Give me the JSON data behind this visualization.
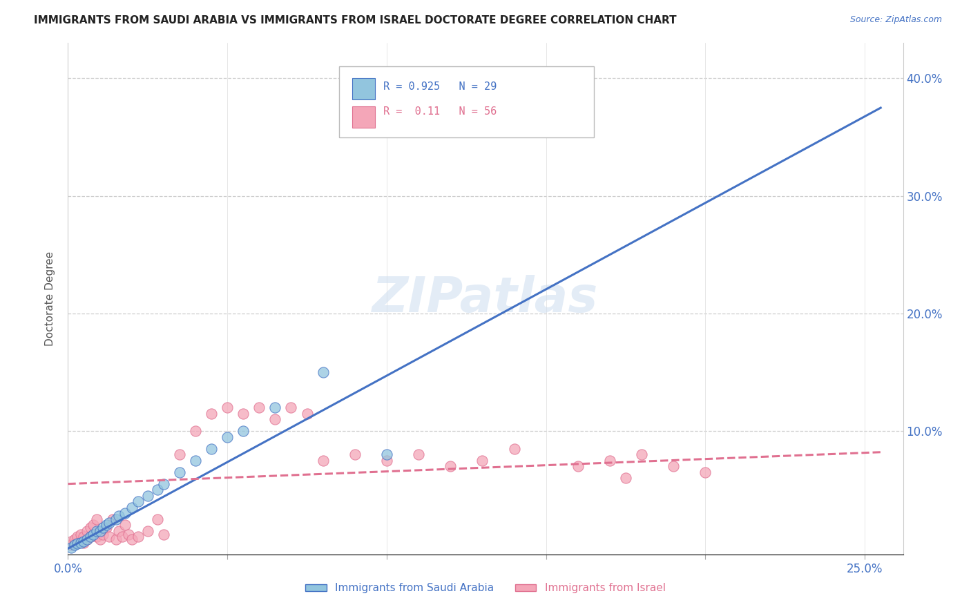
{
  "title": "IMMIGRANTS FROM SAUDI ARABIA VS IMMIGRANTS FROM ISRAEL DOCTORATE DEGREE CORRELATION CHART",
  "source": "Source: ZipAtlas.com",
  "ylabel": "Doctorate Degree",
  "legend1_label": "Immigrants from Saudi Arabia",
  "legend2_label": "Immigrants from Israel",
  "r1": 0.925,
  "n1": 29,
  "r2": 0.11,
  "n2": 56,
  "color_blue": "#92c5de",
  "color_pink": "#f4a6b8",
  "color_blue_text": "#4472c4",
  "color_pink_text": "#e07090",
  "watermark": "ZIPatlas",
  "blue_line_x": [
    0.0,
    0.255
  ],
  "blue_line_y": [
    0.0,
    0.375
  ],
  "pink_line_x": [
    0.0,
    0.255
  ],
  "pink_line_y": [
    0.055,
    0.082
  ],
  "xlim": [
    0.0,
    0.262
  ],
  "ylim": [
    -0.005,
    0.43
  ],
  "saudi_scatter_x": [
    0.001,
    0.002,
    0.003,
    0.004,
    0.005,
    0.006,
    0.007,
    0.008,
    0.009,
    0.01,
    0.011,
    0.012,
    0.013,
    0.015,
    0.016,
    0.018,
    0.02,
    0.022,
    0.025,
    0.028,
    0.03,
    0.035,
    0.04,
    0.045,
    0.05,
    0.055,
    0.065,
    0.08,
    0.1
  ],
  "saudi_scatter_y": [
    0.001,
    0.003,
    0.004,
    0.005,
    0.006,
    0.008,
    0.01,
    0.012,
    0.015,
    0.015,
    0.018,
    0.02,
    0.022,
    0.025,
    0.028,
    0.03,
    0.035,
    0.04,
    0.045,
    0.05,
    0.055,
    0.065,
    0.075,
    0.085,
    0.095,
    0.1,
    0.12,
    0.15,
    0.08
  ],
  "israel_scatter_x": [
    0.001,
    0.001,
    0.002,
    0.002,
    0.003,
    0.003,
    0.004,
    0.004,
    0.005,
    0.005,
    0.006,
    0.006,
    0.007,
    0.007,
    0.008,
    0.008,
    0.009,
    0.009,
    0.01,
    0.01,
    0.011,
    0.012,
    0.013,
    0.014,
    0.015,
    0.016,
    0.017,
    0.018,
    0.019,
    0.02,
    0.022,
    0.025,
    0.028,
    0.03,
    0.035,
    0.04,
    0.045,
    0.05,
    0.055,
    0.06,
    0.065,
    0.07,
    0.075,
    0.08,
    0.09,
    0.1,
    0.11,
    0.12,
    0.13,
    0.14,
    0.16,
    0.17,
    0.18,
    0.19,
    0.2,
    0.175
  ],
  "israel_scatter_y": [
    0.003,
    0.006,
    0.004,
    0.008,
    0.005,
    0.01,
    0.006,
    0.012,
    0.005,
    0.01,
    0.008,
    0.015,
    0.01,
    0.018,
    0.012,
    0.02,
    0.01,
    0.025,
    0.008,
    0.015,
    0.012,
    0.018,
    0.01,
    0.025,
    0.008,
    0.015,
    0.01,
    0.02,
    0.012,
    0.008,
    0.01,
    0.015,
    0.025,
    0.012,
    0.08,
    0.1,
    0.115,
    0.12,
    0.115,
    0.12,
    0.11,
    0.12,
    0.115,
    0.075,
    0.08,
    0.075,
    0.08,
    0.07,
    0.075,
    0.085,
    0.07,
    0.075,
    0.08,
    0.07,
    0.065,
    0.06
  ]
}
